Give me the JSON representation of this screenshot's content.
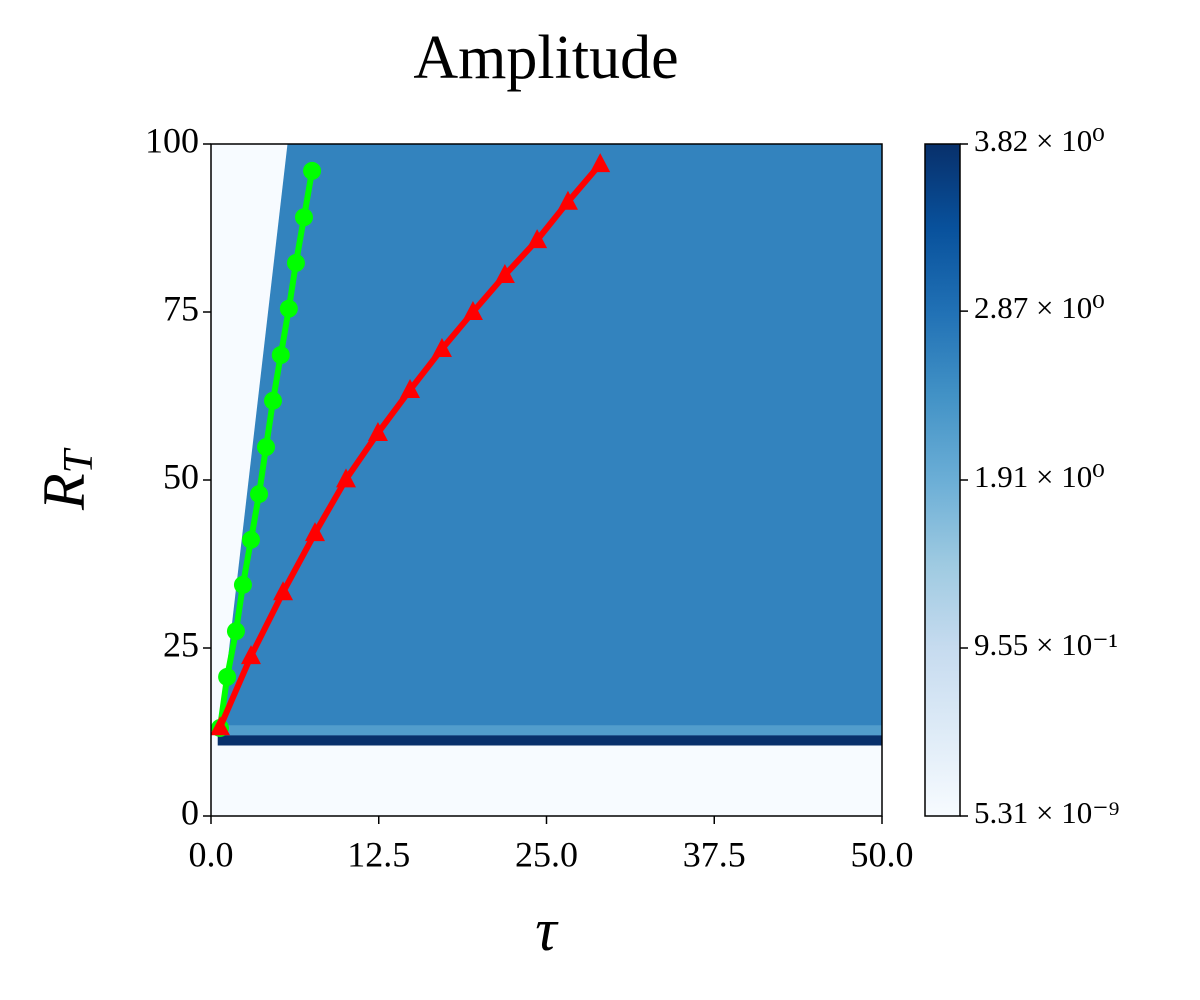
{
  "chart_data": {
    "type": "heatmap",
    "title": "Amplitude",
    "xlabel": "τ",
    "ylabel": [
      "R",
      "T"
    ],
    "xlim": [
      0,
      50
    ],
    "ylim": [
      0,
      100
    ],
    "xticks": [
      {
        "value": 0,
        "label": "0.0"
      },
      12.5,
      {
        "value": 25,
        "label": "25.0"
      },
      37.5,
      {
        "value": 50,
        "label": "50.0"
      }
    ],
    "yticks": [
      0,
      25,
      50,
      75,
      100
    ],
    "colormap": [
      "#f7fbff",
      "#deebf7",
      "#c6dbef",
      "#9ecae1",
      "#6baed6",
      "#4292c6",
      "#2171b5",
      "#08519c",
      "#08306b"
    ],
    "clim": [
      5.31e-09,
      3.82
    ],
    "cticks": [
      {
        "value": 5.31e-09,
        "label": "5.31 × 10⁻⁹"
      },
      {
        "value": 0.955,
        "label": "9.55 × 10⁻¹"
      },
      {
        "value": 1.91,
        "label": "1.91 × 10⁰"
      },
      {
        "value": 2.87,
        "label": "2.87 × 10⁰"
      },
      {
        "value": 3.82,
        "label": "3.82 × 10⁰"
      }
    ],
    "regions": [
      {
        "x": [
          0,
          50,
          50,
          0
        ],
        "y": [
          0,
          0,
          100,
          100
        ],
        "value": 5.31e-09
      },
      {
        "x": [
          0.6,
          50,
          50,
          5.7
        ],
        "y": [
          12,
          12,
          100,
          100
        ],
        "value": 2.6
      },
      {
        "x": [
          0.6,
          50,
          50,
          0.6
        ],
        "y": [
          12,
          12,
          13.5,
          13.5
        ],
        "value": 2.2
      },
      {
        "x": [
          0.5,
          50,
          50,
          0.5
        ],
        "y": [
          10.5,
          10.5,
          12,
          12
        ],
        "value": 3.82
      }
    ],
    "series": [
      {
        "color": "#00ff00",
        "marker": "circle",
        "x": [
          0.67,
          1.2,
          1.86,
          2.38,
          2.98,
          3.58,
          4.1,
          4.62,
          5.2,
          5.8,
          6.33,
          6.93,
          7.53
        ],
        "values": [
          13.1,
          20.7,
          27.5,
          34.4,
          41.1,
          47.9,
          54.9,
          61.8,
          68.6,
          75.5,
          82.3,
          89.1,
          96.0
        ]
      },
      {
        "color": "#ff0000",
        "marker": "triangle",
        "x": [
          0.67,
          2.98,
          5.37,
          7.75,
          10.06,
          12.44,
          14.83,
          17.21,
          19.52,
          21.9,
          24.3,
          26.6,
          29.0
        ],
        "values": [
          13.2,
          23.8,
          33.3,
          42.1,
          50.1,
          57.0,
          63.4,
          69.5,
          75.0,
          80.5,
          85.7,
          91.4,
          97.0
        ]
      }
    ]
  }
}
